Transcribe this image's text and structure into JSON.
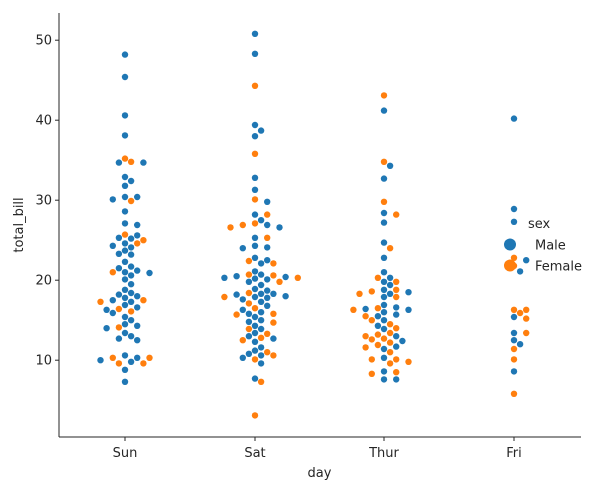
{
  "chart_data": {
    "type": "scatter",
    "subtype": "swarm",
    "title": "",
    "xlabel": "day",
    "ylabel": "total_bill",
    "categories": [
      "Sun",
      "Sat",
      "Thur",
      "Fri"
    ],
    "ylim": [
      0.4,
      53.4
    ],
    "yticks": [
      10,
      20,
      30,
      40,
      50
    ],
    "grid": false,
    "legend": {
      "title": "sex",
      "placement": "right",
      "entries": [
        {
          "label": "Male",
          "color": "#1f77b4"
        },
        {
          "label": "Female",
          "color": "#ff7f0e"
        }
      ]
    },
    "series": [
      {
        "name": "Male",
        "color": "#1f77b4",
        "points": [
          {
            "x": "Sun",
            "y": 48.2
          },
          {
            "x": "Sun",
            "y": 45.4
          },
          {
            "x": "Sun",
            "y": 40.6
          },
          {
            "x": "Sun",
            "y": 38.1
          },
          {
            "x": "Sun",
            "y": 34.7
          },
          {
            "x": "Sun",
            "y": 34.7
          },
          {
            "x": "Sun",
            "y": 32.9
          },
          {
            "x": "Sun",
            "y": 32.4
          },
          {
            "x": "Sun",
            "y": 31.8
          },
          {
            "x": "Sun",
            "y": 30.4
          },
          {
            "x": "Sun",
            "y": 30.4
          },
          {
            "x": "Sun",
            "y": 30.1
          },
          {
            "x": "Sun",
            "y": 28.6
          },
          {
            "x": "Sun",
            "y": 27.1
          },
          {
            "x": "Sun",
            "y": 26.9
          },
          {
            "x": "Sun",
            "y": 25.6
          },
          {
            "x": "Sun",
            "y": 25.3
          },
          {
            "x": "Sun",
            "y": 25.2
          },
          {
            "x": "Sun",
            "y": 24.6
          },
          {
            "x": "Sun",
            "y": 24.3
          },
          {
            "x": "Sun",
            "y": 24.1
          },
          {
            "x": "Sun",
            "y": 23.7
          },
          {
            "x": "Sun",
            "y": 23.3
          },
          {
            "x": "Sun",
            "y": 23.2
          },
          {
            "x": "Sun",
            "y": 22.3
          },
          {
            "x": "Sun",
            "y": 21.7
          },
          {
            "x": "Sun",
            "y": 21.5
          },
          {
            "x": "Sun",
            "y": 21.2
          },
          {
            "x": "Sun",
            "y": 21.0
          },
          {
            "x": "Sun",
            "y": 20.9
          },
          {
            "x": "Sun",
            "y": 20.6
          },
          {
            "x": "Sun",
            "y": 20.1
          },
          {
            "x": "Sun",
            "y": 19.5
          },
          {
            "x": "Sun",
            "y": 18.8
          },
          {
            "x": "Sun",
            "y": 18.4
          },
          {
            "x": "Sun",
            "y": 18.2
          },
          {
            "x": "Sun",
            "y": 18.0
          },
          {
            "x": "Sun",
            "y": 17.8
          },
          {
            "x": "Sun",
            "y": 17.5
          },
          {
            "x": "Sun",
            "y": 17.3
          },
          {
            "x": "Sun",
            "y": 16.9
          },
          {
            "x": "Sun",
            "y": 16.6
          },
          {
            "x": "Sun",
            "y": 16.3
          },
          {
            "x": "Sun",
            "y": 15.9
          },
          {
            "x": "Sun",
            "y": 15.4
          },
          {
            "x": "Sun",
            "y": 15.0
          },
          {
            "x": "Sun",
            "y": 14.5
          },
          {
            "x": "Sun",
            "y": 14.3
          },
          {
            "x": "Sun",
            "y": 14.0
          },
          {
            "x": "Sun",
            "y": 13.4
          },
          {
            "x": "Sun",
            "y": 13.0
          },
          {
            "x": "Sun",
            "y": 12.7
          },
          {
            "x": "Sun",
            "y": 12.5
          },
          {
            "x": "Sun",
            "y": 10.6
          },
          {
            "x": "Sun",
            "y": 10.3
          },
          {
            "x": "Sun",
            "y": 10.0
          },
          {
            "x": "Sun",
            "y": 9.8
          },
          {
            "x": "Sun",
            "y": 8.8
          },
          {
            "x": "Sun",
            "y": 7.3
          },
          {
            "x": "Sat",
            "y": 50.8
          },
          {
            "x": "Sat",
            "y": 48.3
          },
          {
            "x": "Sat",
            "y": 39.4
          },
          {
            "x": "Sat",
            "y": 38.7
          },
          {
            "x": "Sat",
            "y": 38.0
          },
          {
            "x": "Sat",
            "y": 32.8
          },
          {
            "x": "Sat",
            "y": 31.3
          },
          {
            "x": "Sat",
            "y": 29.8
          },
          {
            "x": "Sat",
            "y": 28.2
          },
          {
            "x": "Sat",
            "y": 27.5
          },
          {
            "x": "Sat",
            "y": 26.9
          },
          {
            "x": "Sat",
            "y": 26.6
          },
          {
            "x": "Sat",
            "y": 25.3
          },
          {
            "x": "Sat",
            "y": 24.3
          },
          {
            "x": "Sat",
            "y": 24.1
          },
          {
            "x": "Sat",
            "y": 24.0
          },
          {
            "x": "Sat",
            "y": 22.8
          },
          {
            "x": "Sat",
            "y": 22.5
          },
          {
            "x": "Sat",
            "y": 22.1
          },
          {
            "x": "Sat",
            "y": 21.1
          },
          {
            "x": "Sat",
            "y": 20.7
          },
          {
            "x": "Sat",
            "y": 20.5
          },
          {
            "x": "Sat",
            "y": 20.4
          },
          {
            "x": "Sat",
            "y": 20.3
          },
          {
            "x": "Sat",
            "y": 20.2
          },
          {
            "x": "Sat",
            "y": 20.1
          },
          {
            "x": "Sat",
            "y": 19.8
          },
          {
            "x": "Sat",
            "y": 19.4
          },
          {
            "x": "Sat",
            "y": 18.9
          },
          {
            "x": "Sat",
            "y": 18.7
          },
          {
            "x": "Sat",
            "y": 18.3
          },
          {
            "x": "Sat",
            "y": 18.3
          },
          {
            "x": "Sat",
            "y": 18.2
          },
          {
            "x": "Sat",
            "y": 18.0
          },
          {
            "x": "Sat",
            "y": 17.9
          },
          {
            "x": "Sat",
            "y": 17.8
          },
          {
            "x": "Sat",
            "y": 17.6
          },
          {
            "x": "Sat",
            "y": 17.3
          },
          {
            "x": "Sat",
            "y": 16.8
          },
          {
            "x": "Sat",
            "y": 16.3
          },
          {
            "x": "Sat",
            "y": 16.0
          },
          {
            "x": "Sat",
            "y": 15.8
          },
          {
            "x": "Sat",
            "y": 15.4
          },
          {
            "x": "Sat",
            "y": 15.0
          },
          {
            "x": "Sat",
            "y": 14.8
          },
          {
            "x": "Sat",
            "y": 14.3
          },
          {
            "x": "Sat",
            "y": 13.9
          },
          {
            "x": "Sat",
            "y": 13.4
          },
          {
            "x": "Sat",
            "y": 13.0
          },
          {
            "x": "Sat",
            "y": 12.7
          },
          {
            "x": "Sat",
            "y": 12.3
          },
          {
            "x": "Sat",
            "y": 11.6
          },
          {
            "x": "Sat",
            "y": 11.2
          },
          {
            "x": "Sat",
            "y": 10.8
          },
          {
            "x": "Sat",
            "y": 10.6
          },
          {
            "x": "Sat",
            "y": 10.3
          },
          {
            "x": "Sat",
            "y": 9.6
          },
          {
            "x": "Sat",
            "y": 7.7
          },
          {
            "x": "Thur",
            "y": 41.2
          },
          {
            "x": "Thur",
            "y": 34.3
          },
          {
            "x": "Thur",
            "y": 32.7
          },
          {
            "x": "Thur",
            "y": 28.4
          },
          {
            "x": "Thur",
            "y": 27.2
          },
          {
            "x": "Thur",
            "y": 24.7
          },
          {
            "x": "Thur",
            "y": 22.8
          },
          {
            "x": "Thur",
            "y": 21.0
          },
          {
            "x": "Thur",
            "y": 20.3
          },
          {
            "x": "Thur",
            "y": 19.8
          },
          {
            "x": "Thur",
            "y": 19.4
          },
          {
            "x": "Thur",
            "y": 18.8
          },
          {
            "x": "Thur",
            "y": 18.5
          },
          {
            "x": "Thur",
            "y": 18.3
          },
          {
            "x": "Thur",
            "y": 17.9
          },
          {
            "x": "Thur",
            "y": 16.9
          },
          {
            "x": "Thur",
            "y": 16.6
          },
          {
            "x": "Thur",
            "y": 16.4
          },
          {
            "x": "Thur",
            "y": 16.3
          },
          {
            "x": "Thur",
            "y": 16.0
          },
          {
            "x": "Thur",
            "y": 15.7
          },
          {
            "x": "Thur",
            "y": 15.5
          },
          {
            "x": "Thur",
            "y": 15.0
          },
          {
            "x": "Thur",
            "y": 14.3
          },
          {
            "x": "Thur",
            "y": 13.9
          },
          {
            "x": "Thur",
            "y": 13.0
          },
          {
            "x": "Thur",
            "y": 12.4
          },
          {
            "x": "Thur",
            "y": 11.7
          },
          {
            "x": "Thur",
            "y": 11.4
          },
          {
            "x": "Thur",
            "y": 10.3
          },
          {
            "x": "Thur",
            "y": 8.6
          },
          {
            "x": "Thur",
            "y": 7.6
          },
          {
            "x": "Thur",
            "y": 7.6
          },
          {
            "x": "Fri",
            "y": 40.2
          },
          {
            "x": "Fri",
            "y": 28.9
          },
          {
            "x": "Fri",
            "y": 27.3
          },
          {
            "x": "Fri",
            "y": 22.5
          },
          {
            "x": "Fri",
            "y": 21.1
          },
          {
            "x": "Fri",
            "y": 15.4
          },
          {
            "x": "Fri",
            "y": 13.4
          },
          {
            "x": "Fri",
            "y": 12.5
          },
          {
            "x": "Fri",
            "y": 12.0
          },
          {
            "x": "Fri",
            "y": 8.6
          }
        ]
      },
      {
        "name": "Female",
        "color": "#ff7f0e",
        "points": [
          {
            "x": "Sun",
            "y": 35.2
          },
          {
            "x": "Sun",
            "y": 34.8
          },
          {
            "x": "Sun",
            "y": 29.9
          },
          {
            "x": "Sun",
            "y": 25.7
          },
          {
            "x": "Sun",
            "y": 25.0
          },
          {
            "x": "Sun",
            "y": 24.6
          },
          {
            "x": "Sun",
            "y": 21.0
          },
          {
            "x": "Sun",
            "y": 17.5
          },
          {
            "x": "Sun",
            "y": 17.3
          },
          {
            "x": "Sun",
            "y": 16.4
          },
          {
            "x": "Sun",
            "y": 16.1
          },
          {
            "x": "Sun",
            "y": 14.1
          },
          {
            "x": "Sun",
            "y": 10.3
          },
          {
            "x": "Sun",
            "y": 10.3
          },
          {
            "x": "Sun",
            "y": 9.6
          },
          {
            "x": "Sun",
            "y": 9.6
          },
          {
            "x": "Sat",
            "y": 44.3
          },
          {
            "x": "Sat",
            "y": 35.8
          },
          {
            "x": "Sat",
            "y": 30.1
          },
          {
            "x": "Sat",
            "y": 28.2
          },
          {
            "x": "Sat",
            "y": 27.1
          },
          {
            "x": "Sat",
            "y": 26.9
          },
          {
            "x": "Sat",
            "y": 26.6
          },
          {
            "x": "Sat",
            "y": 25.3
          },
          {
            "x": "Sat",
            "y": 22.4
          },
          {
            "x": "Sat",
            "y": 22.1
          },
          {
            "x": "Sat",
            "y": 20.7
          },
          {
            "x": "Sat",
            "y": 20.6
          },
          {
            "x": "Sat",
            "y": 20.3
          },
          {
            "x": "Sat",
            "y": 19.8
          },
          {
            "x": "Sat",
            "y": 18.4
          },
          {
            "x": "Sat",
            "y": 17.9
          },
          {
            "x": "Sat",
            "y": 17.1
          },
          {
            "x": "Sat",
            "y": 16.5
          },
          {
            "x": "Sat",
            "y": 15.8
          },
          {
            "x": "Sat",
            "y": 15.7
          },
          {
            "x": "Sat",
            "y": 14.7
          },
          {
            "x": "Sat",
            "y": 13.9
          },
          {
            "x": "Sat",
            "y": 13.3
          },
          {
            "x": "Sat",
            "y": 12.8
          },
          {
            "x": "Sat",
            "y": 12.5
          },
          {
            "x": "Sat",
            "y": 11.0
          },
          {
            "x": "Sat",
            "y": 10.6
          },
          {
            "x": "Sat",
            "y": 10.1
          },
          {
            "x": "Sat",
            "y": 7.3
          },
          {
            "x": "Sat",
            "y": 3.1
          },
          {
            "x": "Thur",
            "y": 43.1
          },
          {
            "x": "Thur",
            "y": 34.8
          },
          {
            "x": "Thur",
            "y": 29.8
          },
          {
            "x": "Thur",
            "y": 28.2
          },
          {
            "x": "Thur",
            "y": 24.0
          },
          {
            "x": "Thur",
            "y": 20.3
          },
          {
            "x": "Thur",
            "y": 19.8
          },
          {
            "x": "Thur",
            "y": 18.8
          },
          {
            "x": "Thur",
            "y": 18.6
          },
          {
            "x": "Thur",
            "y": 18.3
          },
          {
            "x": "Thur",
            "y": 17.9
          },
          {
            "x": "Thur",
            "y": 16.5
          },
          {
            "x": "Thur",
            "y": 16.3
          },
          {
            "x": "Thur",
            "y": 15.5
          },
          {
            "x": "Thur",
            "y": 15.0
          },
          {
            "x": "Thur",
            "y": 14.5
          },
          {
            "x": "Thur",
            "y": 14.0
          },
          {
            "x": "Thur",
            "y": 13.4
          },
          {
            "x": "Thur",
            "y": 13.2
          },
          {
            "x": "Thur",
            "y": 13.0
          },
          {
            "x": "Thur",
            "y": 12.7
          },
          {
            "x": "Thur",
            "y": 12.6
          },
          {
            "x": "Thur",
            "y": 12.2
          },
          {
            "x": "Thur",
            "y": 11.9
          },
          {
            "x": "Thur",
            "y": 11.6
          },
          {
            "x": "Thur",
            "y": 11.0
          },
          {
            "x": "Thur",
            "y": 10.1
          },
          {
            "x": "Thur",
            "y": 10.1
          },
          {
            "x": "Thur",
            "y": 9.8
          },
          {
            "x": "Thur",
            "y": 9.6
          },
          {
            "x": "Thur",
            "y": 8.5
          },
          {
            "x": "Thur",
            "y": 8.3
          },
          {
            "x": "Fri",
            "y": 22.8
          },
          {
            "x": "Fri",
            "y": 21.8
          },
          {
            "x": "Fri",
            "y": 16.3
          },
          {
            "x": "Fri",
            "y": 16.3
          },
          {
            "x": "Fri",
            "y": 15.9
          },
          {
            "x": "Fri",
            "y": 15.2
          },
          {
            "x": "Fri",
            "y": 13.4
          },
          {
            "x": "Fri",
            "y": 11.4
          },
          {
            "x": "Fri",
            "y": 10.1
          },
          {
            "x": "Fri",
            "y": 5.8
          }
        ]
      }
    ]
  }
}
